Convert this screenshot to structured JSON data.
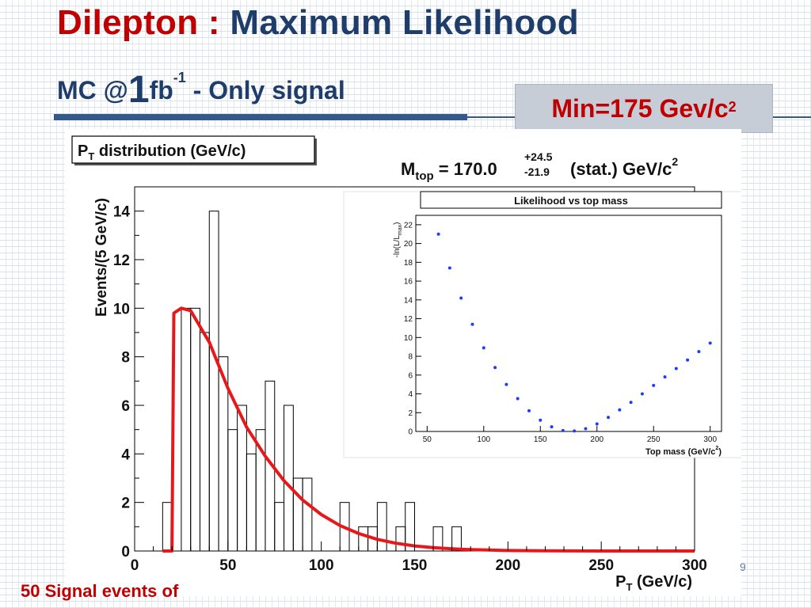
{
  "slide": {
    "title_part1": "Dilepton :",
    "title_part2": "Maximum Likelihood",
    "subtitle_pre": "MC @",
    "subtitle_big": "1",
    "subtitle_unit": "fb",
    "subtitle_exp": "-1",
    "subtitle_post": " - Only signal",
    "min_box_text": "Min=175 Gev/c",
    "min_box_exp": "2",
    "footer_text": "50 Signal events of",
    "page_number": "9",
    "colors": {
      "title_red": "#c00000",
      "title_blue": "#1f3d6b",
      "box_bg": "#c6cdd7",
      "rule": "#34598c"
    }
  },
  "chart_data": [
    {
      "type": "bar",
      "subtype": "histogram",
      "title_main": "P",
      "title_sub": "T",
      "title_rest": " distribution (GeV/c)",
      "ylabel": "Events/(5 GeV/c)",
      "xlabel_main": "P",
      "xlabel_sub": "T",
      "xlabel_rest": " (GeV/c)",
      "xlim": [
        0,
        300
      ],
      "ylim": [
        0,
        15
      ],
      "xticks": [
        "0",
        "50",
        "100",
        "150",
        "200",
        "250",
        "300"
      ],
      "yticks": [
        "0",
        "2",
        "4",
        "6",
        "8",
        "10",
        "12",
        "14"
      ],
      "annotation": {
        "label": "M",
        "label_sub": "top",
        "value": " = 170.0",
        "err_up": "+24.5",
        "err_down": "-21.9",
        "suffix": "(stat.) GeV/c",
        "suffix_exp": "2"
      },
      "bin_width": 5,
      "bin_edges": [
        15,
        20,
        25,
        30,
        35,
        40,
        45,
        50,
        55,
        60,
        65,
        70,
        75,
        80,
        85,
        90,
        95,
        100,
        105,
        110,
        115,
        120,
        125,
        130,
        135,
        140,
        145,
        150,
        155,
        160,
        165,
        170,
        175
      ],
      "bin_counts": [
        2,
        0,
        10,
        10,
        9,
        14,
        8,
        5,
        6,
        4,
        5,
        7,
        2,
        6,
        3,
        3,
        0,
        0,
        0,
        2,
        0,
        1,
        1,
        2,
        0,
        1,
        2,
        0,
        0,
        1,
        0,
        1
      ],
      "fit": {
        "color": "#e8181a",
        "description_points": [
          [
            15,
            0
          ],
          [
            20,
            0
          ],
          [
            21,
            9.8
          ],
          [
            25,
            10
          ],
          [
            30,
            9.9
          ],
          [
            40,
            8.6
          ],
          [
            50,
            6.7
          ],
          [
            60,
            5.1
          ],
          [
            70,
            3.9
          ],
          [
            80,
            2.9
          ],
          [
            90,
            2.1
          ],
          [
            100,
            1.5
          ],
          [
            110,
            1.05
          ],
          [
            120,
            0.72
          ],
          [
            130,
            0.48
          ],
          [
            140,
            0.32
          ],
          [
            150,
            0.21
          ],
          [
            160,
            0.14
          ],
          [
            170,
            0.09
          ],
          [
            180,
            0.06
          ],
          [
            190,
            0.04
          ],
          [
            200,
            0.02
          ],
          [
            220,
            0.01
          ],
          [
            250,
            0
          ],
          [
            300,
            0
          ]
        ]
      }
    },
    {
      "type": "scatter",
      "title": "Likelihood vs top mass",
      "ylabel_main": "-ln(L/L",
      "ylabel_sub": "max",
      "ylabel_close": ")",
      "xlabel": "Top mass (GeV/c",
      "xlabel_exp": "2",
      "xlabel_close": ")",
      "xlim": [
        40,
        310
      ],
      "ylim": [
        0,
        23
      ],
      "xticks": [
        "50",
        "100",
        "150",
        "200",
        "250",
        "300"
      ],
      "yticks": [
        "0",
        "2",
        "4",
        "6",
        "8",
        "10",
        "12",
        "14",
        "16",
        "18",
        "20",
        "22"
      ],
      "marker_color": "#1a3cff",
      "x": [
        60,
        70,
        80,
        90,
        100,
        110,
        120,
        130,
        140,
        150,
        160,
        170,
        180,
        190,
        200,
        210,
        220,
        230,
        240,
        250,
        260,
        270,
        280,
        290,
        300
      ],
      "y": [
        21.0,
        17.4,
        14.2,
        11.4,
        8.9,
        6.8,
        5.0,
        3.5,
        2.2,
        1.2,
        0.5,
        0.1,
        0.05,
        0.3,
        0.8,
        1.5,
        2.3,
        3.1,
        4.0,
        4.9,
        5.8,
        6.7,
        7.6,
        8.5,
        9.4
      ]
    }
  ]
}
